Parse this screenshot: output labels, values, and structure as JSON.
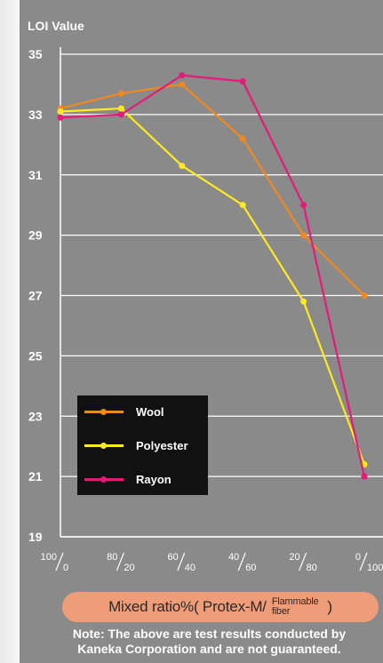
{
  "chart_data": {
    "type": "line",
    "ylabel": "LOI Value",
    "ylim": [
      19,
      35
    ],
    "y_ticks": [
      "19",
      "21",
      "23",
      "25",
      "27",
      "29",
      "31",
      "33",
      "35"
    ],
    "categories": [
      {
        "top": "100",
        "bottom": "0"
      },
      {
        "top": "80",
        "bottom": "20"
      },
      {
        "top": "60",
        "bottom": "40"
      },
      {
        "top": "40",
        "bottom": "60"
      },
      {
        "top": "20",
        "bottom": "80"
      },
      {
        "top": "0",
        "bottom": "100"
      }
    ],
    "series": [
      {
        "name": "Wool",
        "color": "#f08a1f",
        "values": [
          33.2,
          33.7,
          34.0,
          32.2,
          29.0,
          27.0
        ]
      },
      {
        "name": "Polyester",
        "color": "#ffea22",
        "values": [
          33.1,
          33.2,
          31.3,
          30.0,
          26.8,
          21.4
        ]
      },
      {
        "name": "Rayon",
        "color": "#e51a7b",
        "values": [
          32.9,
          33.0,
          34.3,
          34.1,
          30.0,
          21.0
        ]
      }
    ],
    "xlabel": {
      "prefix": "Mixed ratio%( Protex-M/",
      "frac_top": "Flammable",
      "frac_bottom": "fiber",
      "suffix": ")"
    }
  },
  "note": {
    "line1": "Note: The above are test results conducted by",
    "line2": "Kaneka Corporation and are not guaranteed."
  }
}
